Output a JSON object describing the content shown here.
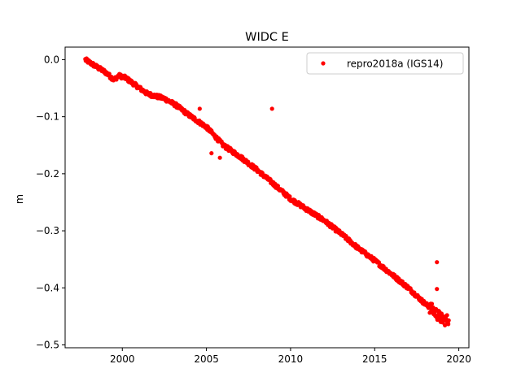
{
  "chart_data": {
    "type": "scatter",
    "title": "WIDC E",
    "xlabel": "",
    "ylabel": "m",
    "xlim": [
      1996.6,
      2020.6
    ],
    "ylim": [
      -0.505,
      0.022
    ],
    "xticks": [
      2000,
      2005,
      2010,
      2015,
      2020
    ],
    "xtick_labels": [
      "2000",
      "2005",
      "2010",
      "2015",
      "2020"
    ],
    "yticks": [
      0.0,
      -0.1,
      -0.2,
      -0.3,
      -0.4,
      -0.5
    ],
    "ytick_labels": [
      "0.0",
      "−0.1",
      "−0.2",
      "−0.3",
      "−0.4",
      "−0.5"
    ],
    "grid": false,
    "legend": {
      "position": "top-right",
      "entries": [
        "repro2018a (IGS14)"
      ]
    },
    "series": [
      {
        "name": "repro2018a (IGS14)",
        "color": "#ff0000",
        "marker": "circle",
        "trend_points": [
          {
            "x": 1997.8,
            "y": 0.0
          },
          {
            "x": 1998.5,
            "y": -0.013
          },
          {
            "x": 1999.0,
            "y": -0.022
          },
          {
            "x": 1999.5,
            "y": -0.035
          },
          {
            "x": 1999.8,
            "y": -0.028
          },
          {
            "x": 2000.2,
            "y": -0.032
          },
          {
            "x": 2000.8,
            "y": -0.045
          },
          {
            "x": 2001.5,
            "y": -0.06
          },
          {
            "x": 2002.5,
            "y": -0.068
          },
          {
            "x": 2003.2,
            "y": -0.08
          },
          {
            "x": 2004.0,
            "y": -0.098
          },
          {
            "x": 2005.0,
            "y": -0.118
          },
          {
            "x": 2006.0,
            "y": -0.15
          },
          {
            "x": 2007.0,
            "y": -0.17
          },
          {
            "x": 2008.0,
            "y": -0.193
          },
          {
            "x": 2009.0,
            "y": -0.218
          },
          {
            "x": 2010.0,
            "y": -0.244
          },
          {
            "x": 2011.0,
            "y": -0.263
          },
          {
            "x": 2012.0,
            "y": -0.282
          },
          {
            "x": 2013.0,
            "y": -0.305
          },
          {
            "x": 2014.0,
            "y": -0.33
          },
          {
            "x": 2015.0,
            "y": -0.352
          },
          {
            "x": 2016.0,
            "y": -0.376
          },
          {
            "x": 2017.0,
            "y": -0.4
          },
          {
            "x": 2018.0,
            "y": -0.428
          },
          {
            "x": 2018.5,
            "y": -0.44
          },
          {
            "x": 2019.0,
            "y": -0.455
          },
          {
            "x": 2019.4,
            "y": -0.457
          }
        ],
        "outliers": [
          {
            "x": 2004.6,
            "y": -0.086
          },
          {
            "x": 2005.3,
            "y": -0.164
          },
          {
            "x": 2005.8,
            "y": -0.172
          },
          {
            "x": 2008.9,
            "y": -0.086
          },
          {
            "x": 2018.7,
            "y": -0.355
          },
          {
            "x": 2018.7,
            "y": -0.402
          }
        ]
      }
    ]
  }
}
